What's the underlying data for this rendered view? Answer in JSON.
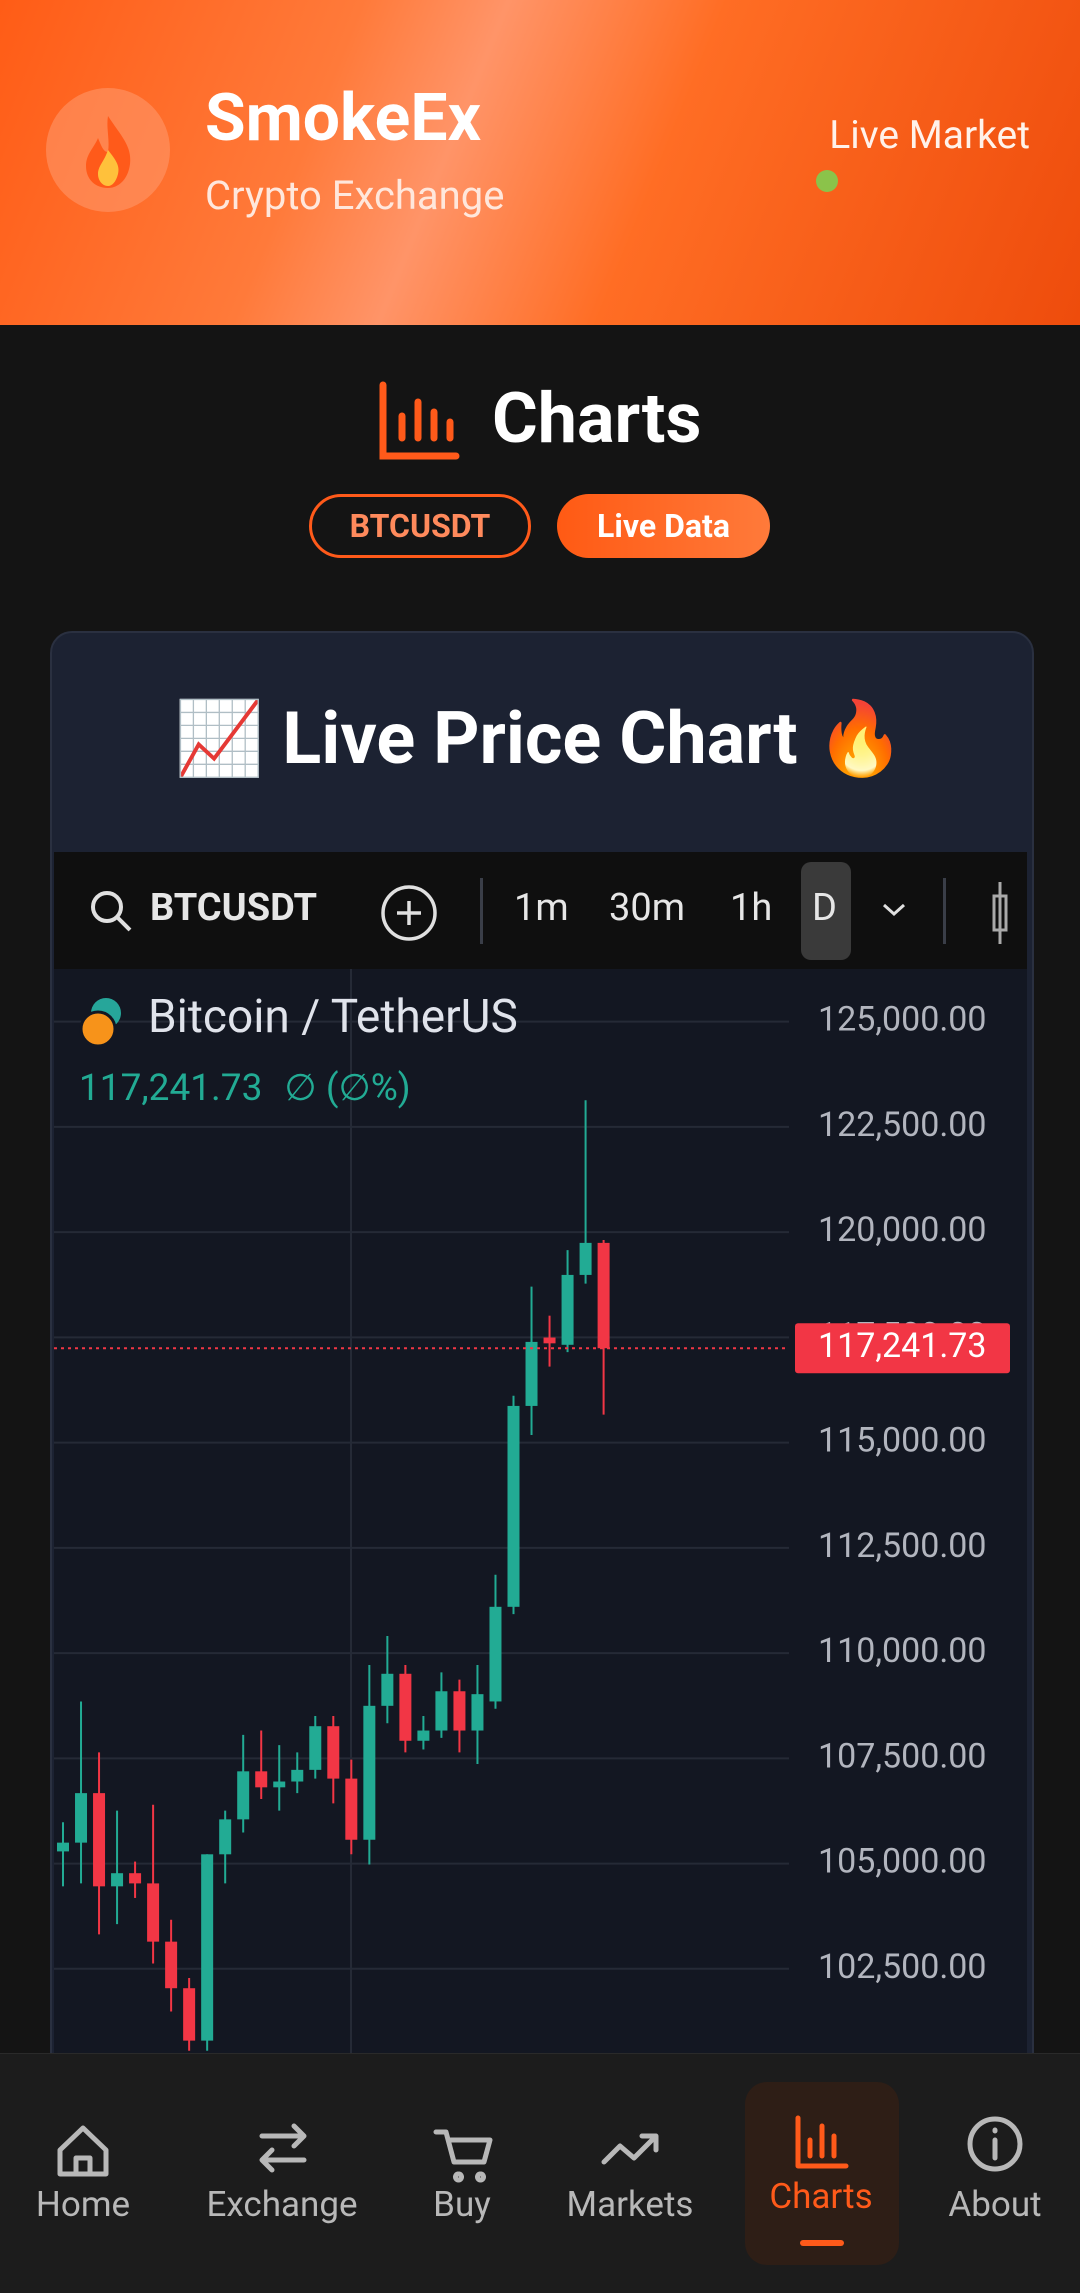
{
  "header": {
    "brand": "SmokeEx",
    "tagline": "Crypto Exchange",
    "status": "Live Market"
  },
  "page": {
    "title": "Charts",
    "badges": [
      "BTCUSDT",
      "Live Data"
    ]
  },
  "card": {
    "title": "📈 Live Price Chart 🔥"
  },
  "widget": {
    "symbol": "BTCUSDT",
    "intervals": [
      "1m",
      "30m",
      "1h",
      "D"
    ]
  },
  "chart_data": {
    "type": "candlestick",
    "title": "Bitcoin / TetherUS",
    "price_text": "117,241.73",
    "change_text": "∅ (∅%)",
    "open": [
      105289,
      105497,
      106673,
      104459,
      104771,
      104529,
      103145,
      102039,
      100794,
      105220,
      106050,
      107191,
      106811,
      106949,
      107226,
      108263,
      107018,
      105566,
      108747,
      109508,
      107917,
      108160,
      109093,
      108160,
      108851,
      111099,
      115871,
      117496,
      117323,
      118983,
      119744
    ],
    "high": [
      105981,
      108851,
      107641,
      106258,
      105047,
      106396,
      103664,
      102281,
      105220,
      106258,
      108056,
      108160,
      107814,
      107641,
      108505,
      108505,
      107468,
      109716,
      110407,
      109716,
      108505,
      109543,
      109370,
      109716,
      111860,
      116113,
      118706,
      118015,
      119571,
      123133,
      119813
    ],
    "low": [
      104459,
      104529,
      103318,
      103560,
      104183,
      102627,
      101486,
      100552,
      100552,
      104529,
      105739,
      106534,
      106258,
      106673,
      107018,
      106431,
      105220,
      104978,
      108332,
      107641,
      107710,
      107987,
      107641,
      107364,
      108678,
      110926,
      115179,
      116805,
      117150,
      118776,
      115663
    ],
    "close": [
      105497,
      106673,
      104459,
      104771,
      104529,
      103145,
      102039,
      100794,
      105220,
      106050,
      107191,
      106811,
      106949,
      107226,
      108263,
      107018,
      105566,
      108747,
      109508,
      107917,
      108160,
      109093,
      108160,
      109024,
      111099,
      115871,
      117392,
      117358,
      118983,
      119744,
      117242
    ],
    "ylim": [
      100500,
      126250
    ],
    "yticks": [
      {
        "value": 102500,
        "label": "102,500.00"
      },
      {
        "value": 105000,
        "label": "105,000.00"
      },
      {
        "value": 107500,
        "label": "107,500.00"
      },
      {
        "value": 110000,
        "label": "110,000.00"
      },
      {
        "value": 112500,
        "label": "112,500.00"
      },
      {
        "value": 115000,
        "label": "115,000.00"
      },
      {
        "value": 117500,
        "label": "117,500.00"
      },
      {
        "value": 120000,
        "label": "120,000.00"
      },
      {
        "value": 122500,
        "label": "122,500.00"
      },
      {
        "value": 125000,
        "label": "125,000.00"
      }
    ],
    "last_price": {
      "value": 117241.73,
      "label": "117,241.73"
    },
    "up_color": "#22ab94",
    "down_color": "#f23645",
    "grid": true
  },
  "nav": {
    "items": [
      "Home",
      "Exchange",
      "Buy",
      "Markets",
      "Charts",
      "About"
    ]
  }
}
